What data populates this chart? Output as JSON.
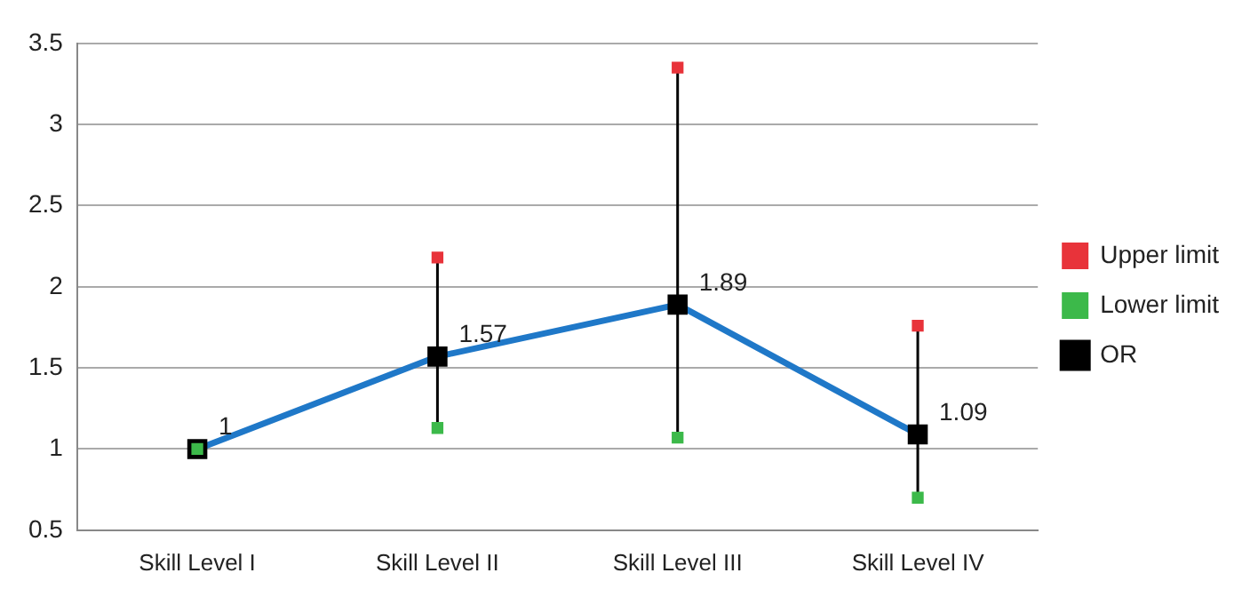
{
  "chart_data": {
    "type": "line",
    "categories": [
      "Skill Level I",
      "Skill Level II",
      "Skill Level III",
      "Skill Level IV"
    ],
    "series": [
      {
        "name": "Upper limit",
        "type": "scatter",
        "color": "#e8333a",
        "marker": "square",
        "values": [
          null,
          2.18,
          3.35,
          1.76
        ]
      },
      {
        "name": "OR",
        "color": "#1f78c8",
        "marker": "square",
        "values": [
          1,
          1.57,
          1.89,
          1.09
        ],
        "value_labels": [
          "1",
          "1.57",
          "1.89",
          "1.09"
        ]
      },
      {
        "name": "Lower limit",
        "type": "scatter",
        "color": "#3cb94a",
        "marker": "square",
        "values": [
          1,
          1.13,
          1.07,
          0.7
        ]
      }
    ],
    "ylim": [
      0.5,
      3.5
    ],
    "yticks": [
      0.5,
      1,
      1.5,
      2,
      2.5,
      3,
      3.5
    ],
    "grid": "y",
    "legend": "right"
  }
}
